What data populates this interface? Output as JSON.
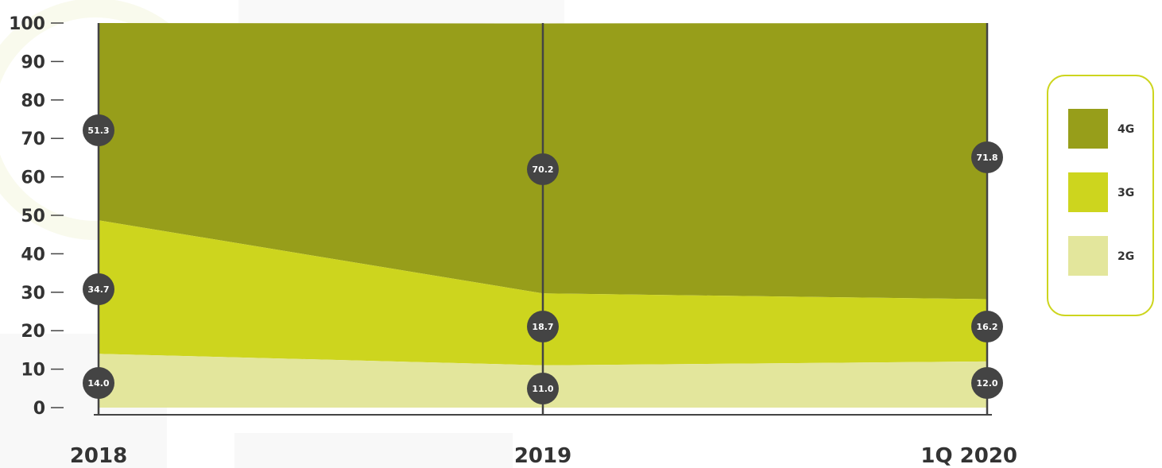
{
  "chart_data": {
    "type": "area",
    "stacked": true,
    "categories": [
      "2018",
      "2019",
      "1Q 2020"
    ],
    "series": [
      {
        "name": "2G",
        "values": [
          14.0,
          11.0,
          12.0
        ],
        "labels": [
          "14.0",
          "11.0",
          "12.0"
        ],
        "color": "#e3e69c"
      },
      {
        "name": "3G",
        "values": [
          34.7,
          18.7,
          16.2
        ],
        "labels": [
          "34.7",
          "18.7",
          "16.2"
        ],
        "color": "#cdd51e"
      },
      {
        "name": "4G",
        "values": [
          51.3,
          70.2,
          71.8
        ],
        "labels": [
          "51.3",
          "70.2",
          "71.8"
        ],
        "color": "#979e1a"
      }
    ],
    "ylim": [
      0,
      100
    ],
    "yticks": [
      "0",
      "10",
      "20",
      "30",
      "40",
      "50",
      "60",
      "70",
      "80",
      "90",
      "100"
    ],
    "legend_position": "right",
    "legend_order": [
      "4G",
      "3G",
      "2G"
    ],
    "colors": {
      "bubble": "#444444",
      "axis": "#444444",
      "legend_border": "#cdd51e",
      "text": "#333333"
    }
  }
}
